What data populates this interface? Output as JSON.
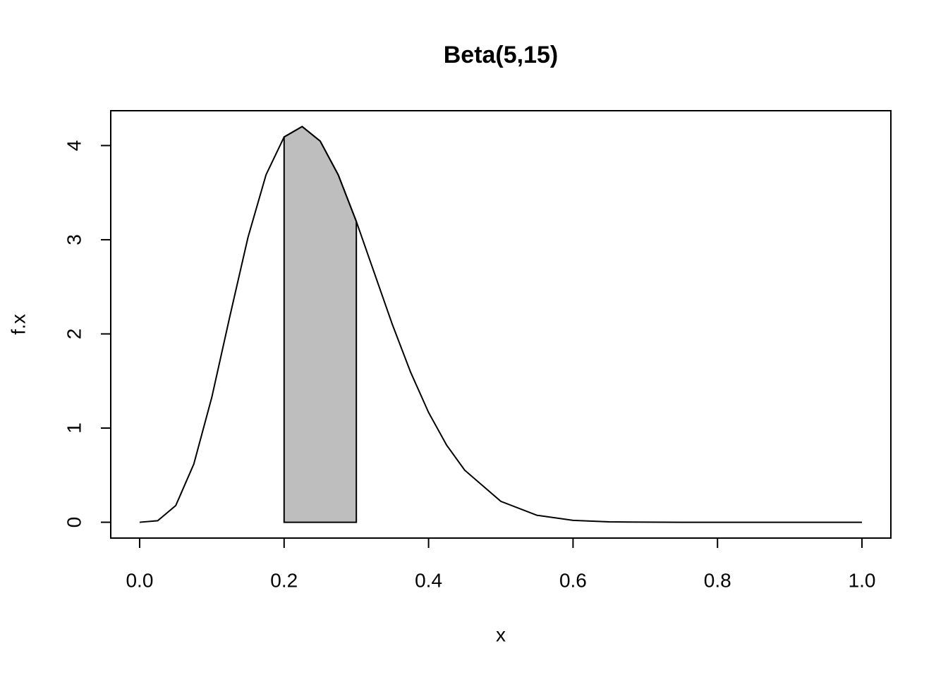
{
  "chart_data": {
    "type": "line",
    "title": "Beta(5,15)",
    "x_label": "x",
    "y_label": "f.x",
    "x": [
      0,
      0.025,
      0.05,
      0.075,
      0.1,
      0.125,
      0.15,
      0.175,
      0.2,
      0.225,
      0.25,
      0.275,
      0.3,
      0.325,
      0.35,
      0.375,
      0.4,
      0.425,
      0.45,
      0.5,
      0.55,
      0.6,
      0.65,
      0.7,
      0.75,
      0.8,
      0.9,
      1
    ],
    "series": [
      {
        "color": "#000000",
        "values": [
          0,
          0.016,
          0.177,
          0.618,
          1.33,
          2.19,
          3.025,
          3.69,
          4.091,
          4.202,
          4.047,
          3.688,
          3.194,
          2.645,
          2.097,
          1.596,
          1.166,
          0.819,
          0.553,
          0.222,
          0.074,
          0.02,
          0.004,
          0.001,
          0,
          0,
          0,
          0
        ]
      }
    ],
    "shaded": {
      "color": "#bebebe",
      "x": [
        0.2,
        0.225,
        0.25,
        0.275,
        0.3
      ],
      "values": [
        4.091,
        4.202,
        4.047,
        3.688,
        3.194
      ]
    },
    "xlim": [
      -0.04,
      1.04
    ],
    "ylim": [
      -0.168,
      4.37
    ],
    "xticks": [
      {
        "value": 0,
        "label": "0.0"
      },
      {
        "value": 0.2,
        "label": "0.2"
      },
      {
        "value": 0.4,
        "label": "0.4"
      },
      {
        "value": 0.6,
        "label": "0.6"
      },
      {
        "value": 0.8,
        "label": "0.8"
      },
      {
        "value": 1,
        "label": "1.0"
      }
    ],
    "yticks": [
      0,
      1,
      2,
      3,
      4
    ],
    "grid": false
  }
}
